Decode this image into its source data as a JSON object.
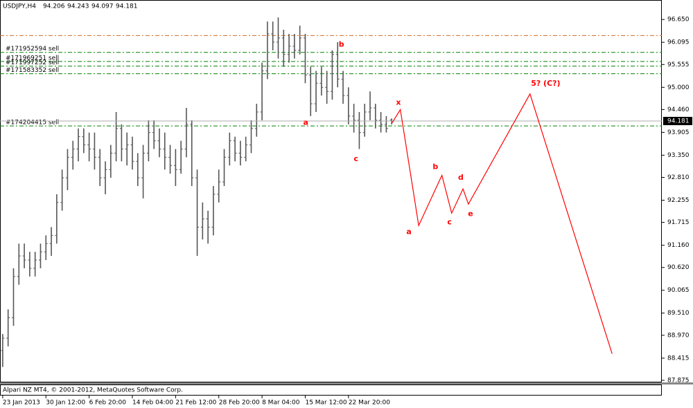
{
  "chart_data": {
    "type": "ohlc",
    "symbol": "USDJPY,H4",
    "copyright": "Alpari NZ MT4, © 2001-2012, MetaQuotes Software Corp.",
    "bar_color": "#555555",
    "grid": false,
    "xlim": [
      -0.5,
      122
    ],
    "ylim": [
      87.824,
      97.107
    ],
    "yticks": [
      {
        "value": 96.65,
        "label": "96.650"
      },
      96.095,
      95.555,
      {
        "value": 95.0,
        "label": "95.000"
      },
      {
        "value": 94.46,
        "label": "94.460"
      },
      93.905,
      {
        "value": 93.35,
        "label": "93.350"
      },
      {
        "value": 92.81,
        "label": "92.810"
      },
      92.255,
      91.715,
      {
        "value": 91.16,
        "label": "91.160"
      },
      {
        "value": 90.62,
        "label": "90.620"
      },
      90.065,
      {
        "value": 89.51,
        "label": "89.510"
      },
      {
        "value": 88.97,
        "label": "88.970"
      },
      88.415,
      87.875
    ],
    "xticks": [
      {
        "value": 0,
        "label": "23 Jan 2013"
      },
      {
        "value": 8,
        "label": "30 Jan 12:00"
      },
      {
        "value": 16,
        "label": "6 Feb 20:00"
      },
      {
        "value": 24,
        "label": "14 Feb 04:00"
      },
      {
        "value": 32,
        "label": "21 Feb 12:00"
      },
      {
        "value": 40,
        "label": "28 Feb 20:00"
      },
      {
        "value": 48,
        "label": "8 Mar 04:00"
      },
      {
        "value": 56,
        "label": "15 Mar 12:00"
      },
      {
        "value": 64,
        "label": "22 Mar 20:00"
      }
    ],
    "bars": [
      [
        88.6,
        89.0,
        88.2,
        88.9
      ],
      [
        88.9,
        89.6,
        88.7,
        89.4
      ],
      [
        89.4,
        90.6,
        89.2,
        90.4
      ],
      [
        90.4,
        91.2,
        90.2,
        90.9
      ],
      [
        90.9,
        91.2,
        90.6,
        90.8
      ],
      [
        90.8,
        91.0,
        90.4,
        90.6
      ],
      [
        90.6,
        91.0,
        90.4,
        90.8
      ],
      [
        90.8,
        91.2,
        90.6,
        91.0
      ],
      [
        91.0,
        91.4,
        90.8,
        91.2
      ],
      [
        91.2,
        91.6,
        90.9,
        91.4
      ],
      [
        91.4,
        92.4,
        91.2,
        92.2
      ],
      [
        92.2,
        93.0,
        92.0,
        92.8
      ],
      [
        92.8,
        93.5,
        92.5,
        93.3
      ],
      [
        93.3,
        93.7,
        93.0,
        93.5
      ],
      [
        93.5,
        94.0,
        93.2,
        93.8
      ],
      [
        93.8,
        94.0,
        93.4,
        93.6
      ],
      [
        93.6,
        93.9,
        93.2,
        93.5
      ],
      [
        93.5,
        93.9,
        93.0,
        93.3
      ],
      [
        93.3,
        93.5,
        92.6,
        92.8
      ],
      [
        92.8,
        93.2,
        92.4,
        93.0
      ],
      [
        93.0,
        93.6,
        92.8,
        93.4
      ],
      [
        93.4,
        94.4,
        93.2,
        94.0
      ],
      [
        94.0,
        94.1,
        93.2,
        93.5
      ],
      [
        93.5,
        93.9,
        93.1,
        93.6
      ],
      [
        93.6,
        93.8,
        93.0,
        93.2
      ],
      [
        93.2,
        93.4,
        92.6,
        92.8
      ],
      [
        92.8,
        93.6,
        92.3,
        93.4
      ],
      [
        93.4,
        94.2,
        93.2,
        93.9
      ],
      [
        93.9,
        94.2,
        93.5,
        93.7
      ],
      [
        93.7,
        94.0,
        93.3,
        93.5
      ],
      [
        93.5,
        93.9,
        93.0,
        93.3
      ],
      [
        93.3,
        93.6,
        92.9,
        93.1
      ],
      [
        93.1,
        93.5,
        92.6,
        93.0
      ],
      [
        93.0,
        93.7,
        92.9,
        93.5
      ],
      [
        93.5,
        94.5,
        93.3,
        94.1
      ],
      [
        94.1,
        94.2,
        92.6,
        92.8
      ],
      [
        92.8,
        93.0,
        90.9,
        91.6
      ],
      [
        91.6,
        92.2,
        91.3,
        91.8
      ],
      [
        91.8,
        92.0,
        91.2,
        91.6
      ],
      [
        91.6,
        92.6,
        91.4,
        92.4
      ],
      [
        92.4,
        93.0,
        92.2,
        92.7
      ],
      [
        92.7,
        93.5,
        92.6,
        93.3
      ],
      [
        93.3,
        93.9,
        93.1,
        93.7
      ],
      [
        93.7,
        93.8,
        93.2,
        93.4
      ],
      [
        93.4,
        93.7,
        93.1,
        93.3
      ],
      [
        93.3,
        93.8,
        93.2,
        93.6
      ],
      [
        93.6,
        94.2,
        93.4,
        94.0
      ],
      [
        94.0,
        94.6,
        93.8,
        94.4
      ],
      [
        94.4,
        95.6,
        94.2,
        95.4
      ],
      [
        95.4,
        96.6,
        95.2,
        96.3
      ],
      [
        96.3,
        96.6,
        95.9,
        96.1
      ],
      [
        96.1,
        96.7,
        95.7,
        96.2
      ],
      [
        96.2,
        96.4,
        95.5,
        95.8
      ],
      [
        95.8,
        96.3,
        95.6,
        96.0
      ],
      [
        96.0,
        96.3,
        95.7,
        95.9
      ],
      [
        95.9,
        96.5,
        95.8,
        96.2
      ],
      [
        96.2,
        96.3,
        95.1,
        95.3
      ],
      [
        95.3,
        95.5,
        94.3,
        94.6
      ],
      [
        94.6,
        95.4,
        94.4,
        95.1
      ],
      [
        95.1,
        95.5,
        94.8,
        95.0
      ],
      [
        95.0,
        95.4,
        94.6,
        94.9
      ],
      [
        94.9,
        95.9,
        94.7,
        95.8
      ],
      [
        95.8,
        96.1,
        95.0,
        95.2
      ],
      [
        95.2,
        95.4,
        94.6,
        94.8
      ],
      [
        94.8,
        95.0,
        94.1,
        94.3
      ],
      [
        94.3,
        94.6,
        93.9,
        94.2
      ],
      [
        94.2,
        94.4,
        93.5,
        93.9
      ],
      [
        93.9,
        94.6,
        93.8,
        94.4
      ],
      [
        94.4,
        94.9,
        94.2,
        94.5
      ],
      [
        94.5,
        94.6,
        94.0,
        94.2
      ],
      [
        94.2,
        94.4,
        93.9,
        94.1
      ],
      [
        94.1,
        94.3,
        93.9,
        94.0
      ],
      [
        94.206,
        94.243,
        94.097,
        94.181
      ]
    ],
    "levels": [
      {
        "price": 96.26,
        "color": "#d2691e"
      }
    ],
    "orders": [
      {
        "label": "#171952594 sell",
        "price": 95.85
      },
      {
        "label": "#171969251 sell",
        "price": 95.63
      },
      {
        "label": "#171997252 sell",
        "price": 95.515
      },
      {
        "label": "#171583352 sell",
        "price": 95.33
      },
      {
        "label": "#174204415 sell",
        "price": 94.06
      }
    ],
    "order_color": "#008000",
    "wave": {
      "color": "#ff0000",
      "x": [
        72.1,
        73.6,
        77.0,
        81.3,
        83.1,
        85.2,
        86.2,
        97.6,
        112.8
      ],
      "y": [
        94.14,
        94.46,
        91.64,
        92.86,
        91.94,
        92.53,
        92.16,
        94.84,
        88.52
      ]
    },
    "annotations": [
      {
        "text": "x",
        "x": 73.25,
        "y": 94.63
      },
      {
        "text": "a",
        "x": 75.2,
        "y": 91.48
      },
      {
        "text": "b",
        "x": 80.1,
        "y": 93.06
      },
      {
        "text": "c",
        "x": 82.7,
        "y": 91.72
      },
      {
        "text": "d",
        "x": 84.8,
        "y": 92.8
      },
      {
        "text": "e",
        "x": 86.6,
        "y": 91.92
      },
      {
        "text": "5? (C?)",
        "x": 100.5,
        "y": 95.09
      },
      {
        "text": "a",
        "x": 56.1,
        "y": 94.14
      },
      {
        "text": "b",
        "x": 62.7,
        "y": 96.04
      },
      {
        "text": "c",
        "x": 65.4,
        "y": 93.26
      }
    ]
  }
}
